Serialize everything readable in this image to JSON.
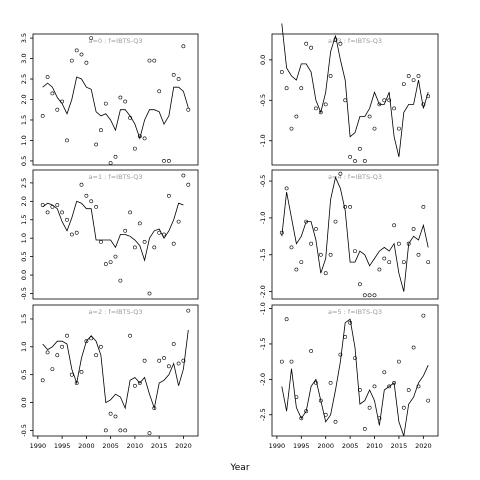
{
  "figure": {
    "xlabel": "Year"
  },
  "chart_data": [
    {
      "type": "scatter",
      "panel_label": "a=0 : f=IBTS-Q3",
      "xlim": [
        1989,
        2023
      ],
      "ylim": [
        0.4,
        3.6
      ],
      "yticks": [
        0.5,
        1.0,
        1.5,
        2.0,
        2.5,
        3.0,
        3.5
      ],
      "xticks": [
        1990,
        1995,
        2000,
        2005,
        2010,
        2015,
        2020
      ],
      "observed_x": [
        1991,
        1992,
        1993,
        1994,
        1995,
        1996,
        1997,
        1998,
        1999,
        2000,
        2001,
        2002,
        2003,
        2004,
        2005,
        2006,
        2007,
        2008,
        2009,
        2010,
        2011,
        2012,
        2013,
        2014,
        2015,
        2016,
        2017,
        2018,
        2019,
        2020,
        2021
      ],
      "observed": [
        1.6,
        2.55,
        2.15,
        1.75,
        1.95,
        1.0,
        2.95,
        3.2,
        3.1,
        2.9,
        3.5,
        0.9,
        1.25,
        1.9,
        0.45,
        0.6,
        2.05,
        1.95,
        1.55,
        0.8,
        1.1,
        1.05,
        2.95,
        2.95,
        2.2,
        0.5,
        0.5,
        2.6,
        2.5,
        3.3,
        1.75
      ],
      "fitted_x": [
        1991,
        1992,
        1993,
        1994,
        1995,
        1996,
        1997,
        1998,
        1999,
        2000,
        2001,
        2002,
        2003,
        2004,
        2005,
        2006,
        2007,
        2008,
        2009,
        2010,
        2011,
        2012,
        2013,
        2014,
        2015,
        2016,
        2017,
        2018,
        2019,
        2020,
        2021
      ],
      "fitted": [
        2.3,
        2.4,
        2.3,
        2.05,
        1.9,
        1.65,
        2.0,
        2.55,
        2.5,
        2.3,
        2.25,
        1.7,
        1.6,
        1.65,
        1.5,
        1.25,
        1.75,
        1.75,
        1.6,
        1.4,
        1.05,
        1.5,
        1.75,
        1.75,
        1.7,
        1.4,
        1.6,
        2.3,
        2.3,
        2.2,
        1.8
      ]
    },
    {
      "type": "scatter",
      "panel_label": "a=1 : f=IBTS-Q3",
      "xlim": [
        1989,
        2023
      ],
      "ylim": [
        -0.65,
        2.85
      ],
      "yticks": [
        -0.5,
        0.0,
        0.5,
        1.0,
        1.5,
        2.0,
        2.5
      ],
      "xticks": [
        1990,
        1995,
        2000,
        2005,
        2010,
        2015,
        2020
      ],
      "observed_x": [
        1991,
        1992,
        1993,
        1994,
        1995,
        1996,
        1997,
        1998,
        1999,
        2000,
        2001,
        2002,
        2003,
        2004,
        2005,
        2006,
        2007,
        2008,
        2009,
        2010,
        2011,
        2012,
        2013,
        2014,
        2015,
        2016,
        2017,
        2018,
        2019,
        2020,
        2021
      ],
      "observed": [
        1.9,
        1.7,
        1.85,
        1.9,
        1.7,
        1.5,
        1.1,
        1.15,
        2.45,
        2.15,
        2.0,
        1.85,
        0.9,
        0.3,
        0.35,
        0.5,
        -0.15,
        1.2,
        1.7,
        0.75,
        1.4,
        0.9,
        -0.5,
        0.75,
        1.15,
        1.1,
        2.15,
        0.85,
        1.45,
        2.7,
        2.45
      ],
      "fitted_x": [
        1991,
        1992,
        1993,
        1994,
        1995,
        1996,
        1997,
        1998,
        1999,
        2000,
        2001,
        2002,
        2003,
        2004,
        2005,
        2006,
        2007,
        2008,
        2009,
        2010,
        2011,
        2012,
        2013,
        2014,
        2015,
        2016,
        2017,
        2018,
        2019,
        2020,
        2021
      ],
      "fitted": [
        1.85,
        1.95,
        1.9,
        1.8,
        1.45,
        1.2,
        1.55,
        2.0,
        1.95,
        1.8,
        1.8,
        0.95,
        0.95,
        0.95,
        0.95,
        0.75,
        1.1,
        1.1,
        1.05,
        0.95,
        0.8,
        0.4,
        1.0,
        1.2,
        1.25,
        1.0,
        1.2,
        1.5,
        1.95,
        1.9,
        null
      ]
    },
    {
      "type": "scatter",
      "panel_label": "a=2 : f=IBTS-Q3",
      "xlim": [
        1989,
        2023
      ],
      "ylim": [
        -0.6,
        1.75
      ],
      "yticks": [
        -0.5,
        0.0,
        0.5,
        1.0,
        1.5
      ],
      "xticks": [
        1990,
        1995,
        2000,
        2005,
        2010,
        2015,
        2020
      ],
      "observed_x": [
        1991,
        1992,
        1993,
        1994,
        1995,
        1996,
        1997,
        1998,
        1999,
        2000,
        2001,
        2002,
        2003,
        2004,
        2005,
        2006,
        2007,
        2008,
        2009,
        2010,
        2011,
        2012,
        2013,
        2014,
        2015,
        2016,
        2017,
        2018,
        2019,
        2020,
        2021
      ],
      "observed": [
        0.4,
        0.9,
        0.6,
        0.85,
        1.0,
        1.2,
        0.5,
        0.35,
        0.55,
        1.1,
        1.15,
        0.85,
        1.0,
        -0.5,
        -0.2,
        -0.25,
        -0.5,
        -0.5,
        1.2,
        0.3,
        0.35,
        0.75,
        -0.55,
        -0.1,
        0.75,
        0.8,
        0.65,
        1.05,
        0.7,
        0.75,
        1.65
      ],
      "fitted_x": [
        1991,
        1992,
        1993,
        1994,
        1995,
        1996,
        1997,
        1998,
        1999,
        2000,
        2001,
        2002,
        2003,
        2004,
        2005,
        2006,
        2007,
        2008,
        2009,
        2010,
        2011,
        2012,
        2013,
        2014,
        2015,
        2016,
        2017,
        2018,
        2019,
        2020,
        2021
      ],
      "fitted": [
        1.05,
        0.95,
        1.0,
        1.1,
        1.1,
        1.05,
        0.6,
        0.35,
        0.8,
        1.1,
        1.2,
        1.1,
        0.85,
        0.0,
        0.05,
        0.15,
        0.1,
        -0.1,
        0.4,
        0.45,
        0.35,
        0.45,
        0.15,
        -0.1,
        0.35,
        0.4,
        0.5,
        0.7,
        0.3,
        0.6,
        1.3
      ]
    },
    {
      "type": "scatter",
      "panel_label": "a=3 : f=IBTS-Q3",
      "xlim": [
        1989,
        2023
      ],
      "ylim": [
        -1.3,
        0.32
      ],
      "yticks": [
        -1.0,
        -0.5,
        0.0
      ],
      "xticks": [
        1990,
        1995,
        2000,
        2005,
        2010,
        2015,
        2020
      ],
      "observed_x": [
        1991,
        1992,
        1993,
        1994,
        1995,
        1996,
        1997,
        1998,
        1999,
        2000,
        2001,
        2002,
        2003,
        2004,
        2005,
        2006,
        2007,
        2008,
        2009,
        2010,
        2011,
        2012,
        2013,
        2014,
        2015,
        2016,
        2017,
        2018,
        2019,
        2020,
        2021
      ],
      "observed": [
        -0.15,
        -0.35,
        -0.85,
        -0.7,
        -0.35,
        0.2,
        0.15,
        -0.6,
        -0.65,
        -0.55,
        -0.2,
        0.25,
        0.2,
        -0.5,
        -1.2,
        -1.25,
        -1.1,
        -1.25,
        -0.7,
        -0.85,
        -0.55,
        -0.5,
        -0.5,
        -0.6,
        -0.85,
        -0.3,
        -0.2,
        -0.25,
        -0.2,
        -0.55,
        -0.45
      ],
      "fitted_x": [
        1991,
        1992,
        1993,
        1994,
        1995,
        1996,
        1997,
        1998,
        1999,
        2000,
        2001,
        2002,
        2003,
        2004,
        2005,
        2006,
        2007,
        2008,
        2009,
        2010,
        2011,
        2012,
        2013,
        2014,
        2015,
        2016,
        2017,
        2018,
        2019,
        2020,
        2021
      ],
      "fitted": [
        0.45,
        -0.1,
        -0.2,
        -0.25,
        -0.05,
        -0.05,
        -0.15,
        -0.5,
        -0.65,
        -0.4,
        0.1,
        0.3,
        0.0,
        -0.25,
        -0.95,
        -0.9,
        -0.7,
        -0.7,
        -0.6,
        -0.4,
        -0.55,
        -0.55,
        -0.4,
        -0.95,
        -1.2,
        -0.65,
        -0.55,
        -0.55,
        -0.25,
        -0.6,
        -0.4
      ]
    },
    {
      "type": "scatter",
      "panel_label": "a=4 : f=IBTS-Q3",
      "xlim": [
        1989,
        2023
      ],
      "ylim": [
        -2.1,
        -0.35
      ],
      "yticks": [
        -2.0,
        -1.5,
        -1.0,
        -0.5
      ],
      "xticks": [
        1990,
        1995,
        2000,
        2005,
        2010,
        2015,
        2020
      ],
      "observed_x": [
        1991,
        1992,
        1993,
        1994,
        1995,
        1996,
        1997,
        1998,
        1999,
        2000,
        2001,
        2002,
        2003,
        2004,
        2005,
        2006,
        2007,
        2008,
        2009,
        2010,
        2011,
        2012,
        2013,
        2014,
        2015,
        2016,
        2017,
        2018,
        2019,
        2020,
        2021
      ],
      "observed": [
        -1.2,
        -0.6,
        -1.4,
        -1.7,
        -1.6,
        -1.05,
        -1.35,
        -1.15,
        -1.5,
        -1.75,
        -1.5,
        -1.05,
        -0.4,
        -0.85,
        -0.85,
        -1.45,
        -1.9,
        -2.05,
        -2.05,
        -2.05,
        -1.7,
        -1.55,
        -1.6,
        -1.1,
        -1.35,
        -1.6,
        -1.35,
        -1.15,
        -1.5,
        -0.85,
        -1.6
      ],
      "fitted_x": [
        1991,
        1992,
        1993,
        1994,
        1995,
        1996,
        1997,
        1998,
        1999,
        2000,
        2001,
        2002,
        2003,
        2004,
        2005,
        2006,
        2007,
        2008,
        2009,
        2010,
        2011,
        2012,
        2013,
        2014,
        2015,
        2016,
        2017,
        2018,
        2019,
        2020,
        2021
      ],
      "fitted": [
        -1.25,
        -0.65,
        -1.0,
        -1.35,
        -1.25,
        -1.05,
        -1.05,
        -1.3,
        -1.75,
        -1.55,
        -0.75,
        -0.45,
        -0.6,
        -0.9,
        -1.6,
        -1.6,
        -1.45,
        -1.5,
        -1.65,
        -1.55,
        -1.45,
        -1.4,
        -1.45,
        -1.35,
        -1.75,
        -2.0,
        -1.35,
        -1.25,
        -1.3,
        -1.1,
        -1.4
      ]
    },
    {
      "type": "scatter",
      "panel_label": "a=5 : f=IBTS-Q3",
      "xlim": [
        1989,
        2023
      ],
      "ylim": [
        -2.8,
        -0.95
      ],
      "yticks": [
        -2.5,
        -2.0,
        -1.5,
        -1.0
      ],
      "xticks": [
        1990,
        1995,
        2000,
        2005,
        2010,
        2015,
        2020
      ],
      "observed_x": [
        1991,
        1992,
        1993,
        1994,
        1995,
        1996,
        1997,
        1998,
        1999,
        2000,
        2001,
        2002,
        2003,
        2004,
        2005,
        2006,
        2007,
        2008,
        2009,
        2010,
        2011,
        2012,
        2013,
        2014,
        2015,
        2016,
        2017,
        2018,
        2019,
        2020,
        2021
      ],
      "observed": [
        -1.75,
        -1.15,
        -1.75,
        -2.25,
        -2.55,
        -2.45,
        -1.6,
        -2.05,
        -2.3,
        -2.5,
        -2.05,
        -2.6,
        -1.65,
        -1.4,
        -1.2,
        -1.7,
        -2.15,
        -2.7,
        -2.4,
        -2.1,
        -2.55,
        -1.9,
        -2.1,
        -2.05,
        -1.75,
        -2.4,
        -2.15,
        -1.55,
        -2.1,
        -1.1,
        -2.3
      ],
      "fitted_x": [
        1991,
        1992,
        1993,
        1994,
        1995,
        1996,
        1997,
        1998,
        1999,
        2000,
        2001,
        2002,
        2003,
        2004,
        2005,
        2006,
        2007,
        2008,
        2009,
        2010,
        2011,
        2012,
        2013,
        2014,
        2015,
        2016,
        2017,
        2018,
        2019,
        2020,
        2021
      ],
      "fitted": [
        -2.1,
        -2.45,
        -1.85,
        -2.4,
        -2.55,
        -2.45,
        -2.1,
        -2.0,
        -2.3,
        -2.6,
        -2.5,
        -2.15,
        -1.75,
        -1.2,
        -1.15,
        -1.55,
        -2.35,
        -2.3,
        -2.15,
        -2.3,
        -2.65,
        -2.15,
        -2.1,
        -2.05,
        -2.6,
        -2.8,
        -2.35,
        -2.25,
        -2.05,
        -1.95,
        -1.8
      ]
    }
  ]
}
